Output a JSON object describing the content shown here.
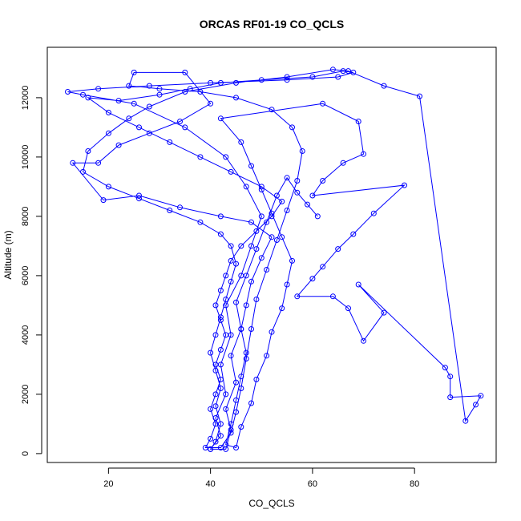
{
  "chart_data": {
    "type": "line",
    "title": "ORCAS RF01-19 CO_QCLS",
    "xlabel": "CO_QCLS",
    "ylabel": "Altitude (m)",
    "xlim": [
      8,
      96
    ],
    "ylim": [
      -300,
      13700
    ],
    "xticks": [
      20,
      40,
      60,
      80
    ],
    "yticks": [
      0,
      2000,
      4000,
      6000,
      8000,
      10000,
      12000
    ],
    "grid": false,
    "series_color": "#0000ff",
    "marker": "open-circle",
    "series": [
      {
        "points": [
          [
            40,
            150
          ],
          [
            42,
            600
          ],
          [
            41,
            1200
          ],
          [
            43,
            2000
          ],
          [
            42,
            3000
          ],
          [
            44,
            4000
          ],
          [
            43,
            5000
          ],
          [
            46,
            6000
          ],
          [
            48,
            7000
          ],
          [
            50,
            8000
          ],
          [
            47,
            9000
          ],
          [
            43,
            10000
          ],
          [
            35,
            11000
          ],
          [
            25,
            11800
          ],
          [
            15,
            12100
          ],
          [
            12,
            12200
          ],
          [
            18,
            12300
          ],
          [
            28,
            12400
          ],
          [
            40,
            12500
          ],
          [
            55,
            12600
          ],
          [
            65,
            12700
          ],
          [
            68,
            12850
          ],
          [
            66,
            12900
          ],
          [
            60,
            12700
          ],
          [
            50,
            12600
          ],
          [
            42,
            12500
          ],
          [
            36,
            12300
          ],
          [
            30,
            12100
          ],
          [
            22,
            11900
          ],
          [
            16,
            12000
          ],
          [
            20,
            11500
          ],
          [
            26,
            11000
          ],
          [
            32,
            10500
          ],
          [
            38,
            10000
          ],
          [
            44,
            9500
          ],
          [
            50,
            9000
          ],
          [
            54,
            8500
          ],
          [
            52,
            8000
          ],
          [
            49,
            7500
          ],
          [
            46,
            7000
          ],
          [
            44,
            6500
          ],
          [
            43,
            6000
          ],
          [
            42,
            5500
          ],
          [
            41,
            5000
          ],
          [
            42,
            4500
          ],
          [
            43,
            4000
          ],
          [
            42,
            3500
          ],
          [
            41,
            3000
          ],
          [
            42,
            2500
          ],
          [
            41,
            2000
          ],
          [
            40,
            1500
          ],
          [
            41,
            1000
          ],
          [
            40,
            500
          ],
          [
            39,
            200
          ],
          [
            42,
            200
          ],
          [
            44,
            700
          ],
          [
            45,
            1400
          ],
          [
            46,
            2200
          ],
          [
            47,
            3200
          ],
          [
            48,
            4200
          ],
          [
            49,
            5200
          ],
          [
            51,
            6200
          ],
          [
            53,
            7200
          ],
          [
            55,
            8200
          ],
          [
            57,
            9200
          ],
          [
            58,
            10200
          ],
          [
            56,
            11000
          ],
          [
            52,
            11600
          ],
          [
            45,
            12000
          ],
          [
            38,
            12200
          ],
          [
            30,
            12300
          ],
          [
            24,
            12400
          ],
          [
            25,
            12850
          ],
          [
            35,
            12850
          ],
          [
            40,
            11800
          ],
          [
            34,
            11200
          ],
          [
            28,
            10800
          ],
          [
            22,
            10400
          ],
          [
            18,
            9800
          ],
          [
            13,
            9800
          ],
          [
            19,
            8550
          ],
          [
            26,
            8700
          ],
          [
            34,
            8300
          ],
          [
            42,
            8000
          ],
          [
            48,
            7800
          ],
          [
            52,
            7300
          ],
          [
            50,
            6600
          ],
          [
            48,
            5800
          ],
          [
            47,
            5000
          ],
          [
            46,
            4200
          ],
          [
            47,
            3400
          ],
          [
            46,
            2600
          ],
          [
            45,
            1800
          ],
          [
            44,
            1000
          ],
          [
            43,
            300
          ],
          [
            45,
            200
          ],
          [
            46,
            900
          ],
          [
            48,
            1700
          ],
          [
            49,
            2500
          ],
          [
            51,
            3300
          ],
          [
            52,
            4100
          ],
          [
            54,
            4900
          ],
          [
            55,
            5700
          ],
          [
            56,
            6500
          ],
          [
            54,
            7300
          ],
          [
            52,
            8100
          ],
          [
            50,
            8900
          ],
          [
            48,
            9700
          ],
          [
            46,
            10500
          ],
          [
            42,
            11300
          ],
          [
            62,
            11800
          ],
          [
            69,
            11200
          ],
          [
            70,
            10100
          ],
          [
            66,
            9800
          ],
          [
            62,
            9200
          ],
          [
            60,
            8700
          ],
          [
            78,
            9050
          ],
          [
            72,
            8100
          ],
          [
            68,
            7400
          ],
          [
            65,
            6900
          ],
          [
            62,
            6300
          ],
          [
            60,
            5900
          ],
          [
            57,
            5300
          ],
          [
            64,
            5300
          ],
          [
            67,
            4900
          ],
          [
            70,
            3800
          ],
          [
            74,
            4750
          ],
          [
            69,
            5700
          ],
          [
            86,
            2900
          ],
          [
            87,
            2600
          ],
          [
            87,
            1900
          ],
          [
            93,
            1950
          ],
          [
            92,
            1650
          ],
          [
            90,
            1100
          ],
          [
            81,
            12050
          ],
          [
            74,
            12400
          ],
          [
            67,
            12900
          ],
          [
            64,
            12950
          ],
          [
            55,
            12700
          ],
          [
            45,
            12500
          ],
          [
            35,
            12200
          ],
          [
            28,
            11700
          ],
          [
            24,
            11300
          ],
          [
            20,
            10800
          ],
          [
            16,
            10200
          ],
          [
            15,
            9500
          ],
          [
            20,
            9000
          ],
          [
            26,
            8600
          ],
          [
            32,
            8200
          ],
          [
            38,
            7800
          ],
          [
            42,
            7400
          ],
          [
            44,
            7000
          ],
          [
            45,
            6400
          ],
          [
            44,
            5800
          ],
          [
            43,
            5200
          ],
          [
            42,
            4600
          ],
          [
            41,
            4000
          ],
          [
            40,
            3400
          ],
          [
            41,
            2800
          ],
          [
            42,
            2200
          ],
          [
            41,
            1600
          ],
          [
            42,
            1000
          ],
          [
            41,
            400
          ],
          [
            40,
            150
          ],
          [
            43,
            150
          ],
          [
            44,
            800
          ],
          [
            43,
            1500
          ],
          [
            45,
            2400
          ],
          [
            44,
            3300
          ],
          [
            46,
            4200
          ],
          [
            45,
            5100
          ],
          [
            47,
            6000
          ],
          [
            49,
            6900
          ],
          [
            51,
            7800
          ],
          [
            53,
            8700
          ],
          [
            55,
            9300
          ],
          [
            57,
            8800
          ],
          [
            59,
            8400
          ],
          [
            61,
            8000
          ]
        ]
      }
    ]
  }
}
